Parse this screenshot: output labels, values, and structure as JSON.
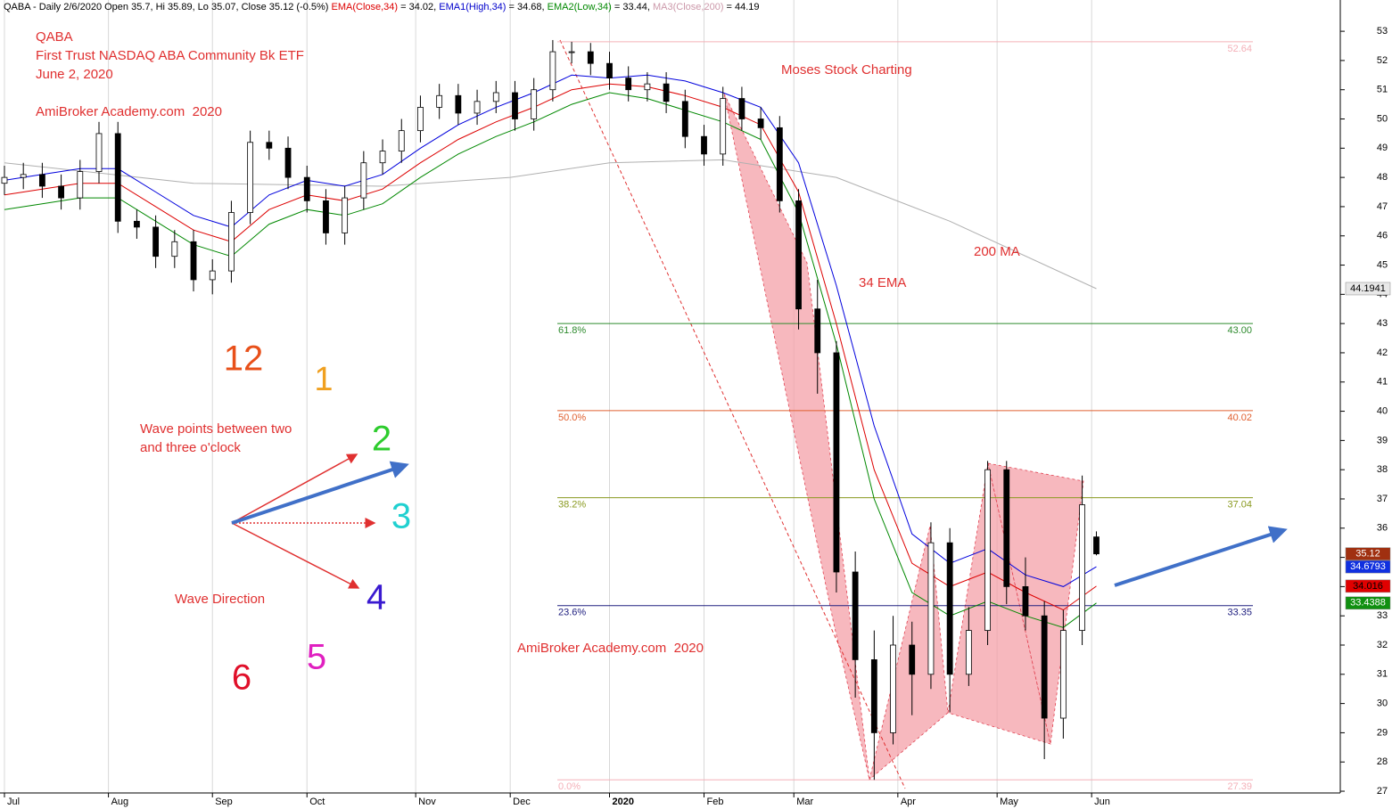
{
  "chart_data": {
    "type": "candlestick",
    "header": [
      {
        "text": "QABA - Daily 2/6/2020 Open 35.7, Hi 35.89, Lo 35.07, Close 35.12 (-0.5%) ",
        "color": "#000000"
      },
      {
        "text": "EMA(Close,34)",
        "color": "#dd0000"
      },
      {
        "text": " = 34.02, ",
        "color": "#000000"
      },
      {
        "text": "EMA1(High,34)",
        "color": "#0000cc"
      },
      {
        "text": " = 34.68, ",
        "color": "#000000"
      },
      {
        "text": "EMA2(Low,34)",
        "color": "#008800"
      },
      {
        "text": " = 33.44, ",
        "color": "#000000"
      },
      {
        "text": "MA3(Close,200)",
        "color": "#cc99aa"
      },
      {
        "text": " = 44.19",
        "color": "#000000"
      }
    ],
    "annotations": [
      {
        "text": "QABA",
        "color": "#e03030"
      },
      {
        "text": "First Trust NASDAQ ABA Community Bk ETF",
        "color": "#e03030"
      },
      {
        "text": "June 2, 2020",
        "color": "#e03030"
      },
      {
        "text": "AmiBroker Academy.com  2020",
        "color": "#e03030"
      },
      {
        "text": "Moses Stock Charting",
        "color": "#e03030"
      },
      {
        "text": "200 MA",
        "color": "#e03030"
      },
      {
        "text": "34 EMA",
        "color": "#e03030"
      },
      {
        "text": "Wave points between two",
        "color": "#e03030"
      },
      {
        "text": "and three o'clock",
        "color": "#e03030"
      },
      {
        "text": "Wave Direction",
        "color": "#e03030"
      },
      {
        "text": "AmiBroker Academy.com  2020",
        "color": "#e03030"
      },
      {
        "text": "12",
        "color": "#e8501a"
      },
      {
        "text": "1",
        "color": "#f0a020"
      },
      {
        "text": "2",
        "color": "#2ecc2e"
      },
      {
        "text": "3",
        "color": "#20d0d0"
      },
      {
        "text": "4",
        "color": "#3a1ad0"
      },
      {
        "text": "5",
        "color": "#e020c0"
      },
      {
        "text": "6",
        "color": "#e0102a"
      }
    ],
    "xlim": [
      -0.94,
      282.6
    ],
    "ylim": [
      26.94,
      54.07
    ],
    "xticks": [
      {
        "value": 0,
        "label": "Jul"
      },
      {
        "value": 22,
        "label": "Aug"
      },
      {
        "value": 44,
        "label": "Sep"
      },
      {
        "value": 64,
        "label": "Oct"
      },
      {
        "value": 87,
        "label": "Nov"
      },
      {
        "value": 107,
        "label": "Dec"
      },
      {
        "value": 128,
        "label": "2020"
      },
      {
        "value": 148,
        "label": "Feb"
      },
      {
        "value": 167,
        "label": "Mar"
      },
      {
        "value": 189,
        "label": "Apr"
      },
      {
        "value": 210,
        "label": "May"
      },
      {
        "value": 230,
        "label": "Jun"
      }
    ],
    "yticks": [
      27,
      28,
      29,
      30,
      31,
      32,
      33,
      34,
      35,
      36,
      37,
      38,
      39,
      40,
      41,
      42,
      43,
      44,
      45,
      46,
      47,
      48,
      49,
      50,
      51,
      52,
      53
    ],
    "x": [
      0,
      4,
      8,
      12,
      16,
      20,
      24,
      28,
      32,
      36,
      40,
      44,
      48,
      52,
      56,
      60,
      64,
      68,
      72,
      76,
      80,
      84,
      88,
      92,
      96,
      100,
      104,
      108,
      112,
      116,
      120,
      124,
      128,
      132,
      136,
      140,
      144,
      148,
      152,
      156,
      160,
      164,
      168,
      172,
      176,
      180,
      184,
      188,
      192,
      196,
      200,
      204,
      208,
      212,
      216,
      220,
      224,
      228,
      231
    ],
    "open": [
      47.8,
      48,
      48.1,
      47.7,
      47.3,
      48.2,
      49.5,
      46.5,
      46.3,
      45.3,
      45.8,
      44.5,
      44.8,
      46.8,
      49.2,
      49.0,
      48.0,
      47.2,
      46.1,
      47.3,
      48.5,
      48.9,
      49.6,
      50.4,
      50.8,
      50.2,
      50.6,
      50.9,
      50.0,
      51.0,
      52.3,
      52.3,
      51.9,
      51.4,
      51.0,
      51.2,
      50.6,
      49.4,
      48.8,
      50.7,
      50.0,
      49.7,
      47.2,
      43.5,
      42.0,
      34.5,
      31.5,
      29.0,
      32.0,
      31.0,
      35.5,
      31.0,
      32.5,
      38.0,
      34.0,
      33.0,
      29.5,
      32.5,
      35.7
    ],
    "high": [
      48.4,
      48.5,
      48.5,
      48.1,
      48.6,
      49.9,
      49.9,
      46.9,
      46.7,
      46.2,
      46.2,
      45.2,
      47.2,
      49.6,
      49.6,
      49.4,
      48.4,
      47.6,
      47.7,
      48.9,
      49.3,
      50.0,
      50.8,
      51.2,
      51.2,
      51.0,
      51.3,
      51.3,
      51.4,
      52.7,
      52.64,
      52.6,
      52.3,
      51.8,
      51.6,
      51.6,
      51.0,
      49.8,
      51.1,
      51.1,
      50.4,
      50.1,
      47.6,
      44.5,
      42.4,
      35.2,
      32.5,
      33.0,
      32.8,
      36.2,
      36.0,
      33.3,
      38.3,
      38.3,
      35.0,
      33.5,
      33.2,
      37.8,
      35.89
    ],
    "low": [
      47.4,
      47.6,
      47.3,
      46.9,
      46.9,
      47.8,
      46.1,
      45.9,
      44.9,
      44.9,
      44.1,
      44.0,
      44.4,
      46.4,
      48.6,
      47.6,
      46.8,
      45.7,
      45.7,
      46.9,
      48.1,
      48.5,
      49.2,
      50.0,
      49.8,
      49.8,
      50.2,
      49.6,
      49.6,
      50.6,
      51.9,
      51.5,
      51.0,
      50.6,
      50.6,
      50.2,
      49.0,
      48.4,
      48.4,
      49.6,
      49.3,
      46.8,
      42.8,
      40.6,
      33.8,
      30.2,
      27.39,
      28.6,
      29.6,
      30.5,
      29.7,
      30.6,
      32.0,
      33.4,
      32.5,
      28.1,
      28.8,
      32.0,
      35.07
    ],
    "close": [
      48,
      48.1,
      47.7,
      47.3,
      48.2,
      49.5,
      46.5,
      46.3,
      45.3,
      45.8,
      44.5,
      44.8,
      46.8,
      49.2,
      49.0,
      48.0,
      47.2,
      46.1,
      47.3,
      48.5,
      48.9,
      49.6,
      50.4,
      50.8,
      50.2,
      50.6,
      50.9,
      50.0,
      51.0,
      52.3,
      52.3,
      51.9,
      51.4,
      51.0,
      51.2,
      50.6,
      49.4,
      48.8,
      50.7,
      50.0,
      49.7,
      47.2,
      43.5,
      42.0,
      34.5,
      31.5,
      29.0,
      32.0,
      31.0,
      35.5,
      31.0,
      32.5,
      38.0,
      34.0,
      33.0,
      29.5,
      32.5,
      36.8,
      35.12
    ],
    "lines": [
      {
        "color": "#b0b0b0",
        "x": [
          0,
          40,
          80,
          107,
          128,
          152,
          176,
          200,
          231
        ],
        "values": [
          48.5,
          47.8,
          47.7,
          48.0,
          48.5,
          48.6,
          48.0,
          46.5,
          44.1941
        ]
      },
      {
        "color": "#0000dd",
        "x": [
          0,
          8,
          16,
          24,
          32,
          40,
          48,
          56,
          64,
          72,
          80,
          88,
          96,
          104,
          112,
          120,
          128,
          136,
          144,
          152,
          160,
          168,
          176,
          184,
          192,
          200,
          208,
          216,
          224,
          231
        ],
        "values": [
          47.9,
          48.1,
          48.3,
          48.3,
          47.5,
          46.7,
          46.3,
          47.4,
          47.9,
          47.7,
          48.1,
          49.0,
          49.8,
          50.4,
          50.9,
          51.5,
          51.4,
          51.5,
          51.3,
          50.9,
          50.4,
          48.5,
          44.3,
          39.5,
          35.8,
          34.8,
          35.3,
          34.4,
          34.0,
          34.6793
        ]
      },
      {
        "color": "#dd0000",
        "x": [
          0,
          8,
          16,
          24,
          32,
          40,
          48,
          56,
          64,
          72,
          80,
          88,
          96,
          104,
          112,
          120,
          128,
          136,
          144,
          152,
          160,
          168,
          176,
          184,
          192,
          200,
          208,
          216,
          224,
          231
        ],
        "values": [
          47.4,
          47.6,
          47.8,
          47.8,
          47.0,
          46.2,
          45.8,
          46.9,
          47.4,
          47.2,
          47.6,
          48.5,
          49.3,
          49.9,
          50.4,
          51.0,
          51.2,
          51.1,
          50.8,
          50.4,
          49.8,
          47.5,
          43.0,
          38.0,
          34.8,
          34.0,
          34.5,
          33.8,
          33.2,
          34.016
        ]
      },
      {
        "color": "#008800",
        "x": [
          0,
          8,
          16,
          24,
          32,
          40,
          48,
          56,
          64,
          72,
          80,
          88,
          96,
          104,
          112,
          120,
          128,
          136,
          144,
          152,
          160,
          168,
          176,
          184,
          192,
          200,
          208,
          216,
          224,
          231
        ],
        "values": [
          46.9,
          47.1,
          47.3,
          47.3,
          46.5,
          45.7,
          45.3,
          46.4,
          46.9,
          46.7,
          47.1,
          48.0,
          48.8,
          49.4,
          49.9,
          50.5,
          50.9,
          50.7,
          50.3,
          49.9,
          49.3,
          46.8,
          42.3,
          37.0,
          33.8,
          33.0,
          33.5,
          33.0,
          32.6,
          33.4388
        ]
      }
    ],
    "fib_levels": [
      {
        "value": 52.64,
        "price": "52.64",
        "color": "#f4b0b8"
      },
      {
        "value": 43,
        "pct": "61.8%",
        "price": "43.00",
        "color": "#2e8b2e"
      },
      {
        "value": 40.02,
        "pct": "50.0%",
        "price": "40.02",
        "color": "#e06030"
      },
      {
        "value": 37.04,
        "pct": "38.2%",
        "price": "37.04",
        "color": "#8a9a20"
      },
      {
        "value": 33.35,
        "pct": "23.6%",
        "price": "33.35",
        "color": "#202080"
      },
      {
        "value": 27.39,
        "pct": "0.0%",
        "price": "27.39",
        "color": "#f4b0b8"
      }
    ],
    "price_tags": [
      {
        "value": 44.1941,
        "color": "#e8e8e8",
        "text_color": "#000000"
      },
      {
        "value": 35.12,
        "color": "#a03010",
        "text_color": "#ffffff"
      },
      {
        "value": 34.6793,
        "color": "#1030e0",
        "text_color": "#ffffff"
      },
      {
        "value": 34.016,
        "color": "#e00000",
        "text_color": "#000000"
      },
      {
        "value": 33.4388,
        "color": "#109010",
        "text_color": "#ffffff"
      }
    ]
  }
}
